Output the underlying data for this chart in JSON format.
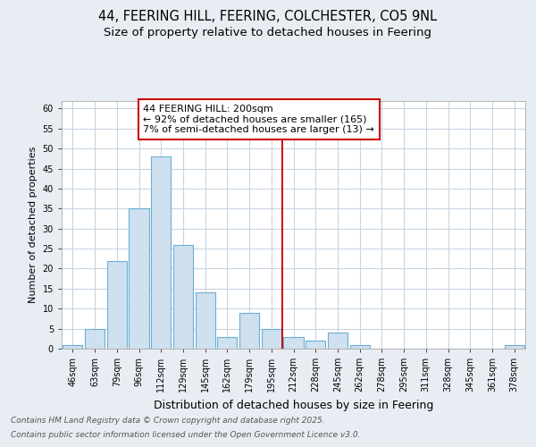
{
  "title_line1": "44, FEERING HILL, FEERING, COLCHESTER, CO5 9NL",
  "title_line2": "Size of property relative to detached houses in Feering",
  "xlabel": "Distribution of detached houses by size in Feering",
  "ylabel": "Number of detached properties",
  "categories": [
    "46sqm",
    "63sqm",
    "79sqm",
    "96sqm",
    "112sqm",
    "129sqm",
    "145sqm",
    "162sqm",
    "179sqm",
    "195sqm",
    "212sqm",
    "228sqm",
    "245sqm",
    "262sqm",
    "278sqm",
    "295sqm",
    "311sqm",
    "328sqm",
    "345sqm",
    "361sqm",
    "378sqm"
  ],
  "values": [
    1,
    5,
    22,
    35,
    48,
    26,
    14,
    3,
    9,
    5,
    3,
    2,
    4,
    1,
    0,
    0,
    0,
    0,
    0,
    0,
    1
  ],
  "bar_color": "#cfe0ef",
  "bar_edge_color": "#6baed6",
  "vline_color": "#cc0000",
  "vline_pos": 9.5,
  "annotation_text": "44 FEERING HILL: 200sqm\n← 92% of detached houses are smaller (165)\n7% of semi-detached houses are larger (13) →",
  "annotation_box_edgecolor": "#cc0000",
  "annotation_box_facecolor": "#ffffff",
  "ylim": [
    0,
    62
  ],
  "yticks": [
    0,
    5,
    10,
    15,
    20,
    25,
    30,
    35,
    40,
    45,
    50,
    55,
    60
  ],
  "figure_bg_color": "#e8edf3",
  "plot_bg_color": "#ffffff",
  "grid_color": "#c8d4e0",
  "footer_line1": "Contains HM Land Registry data © Crown copyright and database right 2025.",
  "footer_line2": "Contains public sector information licensed under the Open Government Licence v3.0.",
  "title_fontsize": 10.5,
  "subtitle_fontsize": 9.5,
  "tick_fontsize": 7,
  "ylabel_fontsize": 8,
  "xlabel_fontsize": 9,
  "annotation_fontsize": 8,
  "footer_fontsize": 6.5
}
